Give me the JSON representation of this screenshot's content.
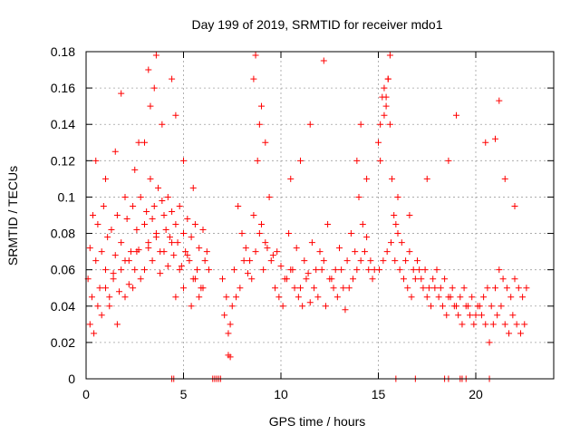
{
  "chart_data": {
    "type": "scatter",
    "title": "Day 199 of 2019, SRMTID for receiver mdo1",
    "xlabel": "GPS time / hours",
    "ylabel": "SRMTID / TECUs",
    "xlim": [
      0,
      24
    ],
    "ylim": [
      0,
      0.18
    ],
    "x_ticks": [
      0,
      5,
      10,
      15,
      20
    ],
    "x_tick_labels": [
      "0",
      "5",
      "10",
      "15",
      "20"
    ],
    "y_ticks": [
      0,
      0.02,
      0.04,
      0.06,
      0.08,
      0.1,
      0.12,
      0.14,
      0.16,
      0.18
    ],
    "y_tick_labels": [
      "0",
      "0.02",
      "0.04",
      "0.06",
      "0.08",
      "0.1",
      "0.12",
      "0.14",
      "0.16",
      "0.18"
    ],
    "grid": true,
    "marker": "+",
    "color": "#ff0000",
    "series": [
      {
        "x": [
          0.1,
          0.2,
          0.3,
          0.35,
          0.5,
          0.6,
          0.7,
          0.8,
          0.9,
          1.0,
          1.1,
          1.2,
          1.3,
          1.4,
          1.5,
          1.6,
          1.7,
          1.8,
          2.0,
          2.1,
          2.2,
          2.3,
          2.4,
          2.5,
          2.6,
          2.7,
          2.8,
          3.0,
          3.1,
          3.2,
          3.3,
          3.4,
          3.5,
          3.6,
          3.7,
          3.8,
          3.9,
          4.0,
          4.1,
          4.2,
          4.3,
          4.4,
          4.5,
          4.6,
          4.7,
          4.8,
          4.9,
          5.0,
          5.1,
          5.2,
          5.3,
          5.4,
          5.5,
          5.6,
          5.7,
          5.8,
          5.9,
          6.0,
          6.1,
          6.2,
          6.3,
          0.2,
          0.4,
          0.6,
          0.8,
          1.0,
          1.2,
          1.4,
          1.6,
          1.8,
          2.0,
          2.2,
          2.4,
          2.6,
          2.8,
          3.0,
          3.2,
          3.4,
          3.6,
          3.8,
          4.0,
          4.2,
          4.4,
          4.6,
          4.8,
          5.0,
          5.2,
          5.4,
          5.6,
          5.8,
          6.0,
          0.5,
          1.0,
          1.5,
          2.0,
          2.5,
          3.0,
          3.3,
          3.5,
          3.9,
          4.4,
          4.6,
          5.0,
          5.5,
          1.8,
          2.7,
          3.2,
          3.6,
          7.0,
          7.2,
          7.4,
          7.6,
          7.8,
          8.0,
          8.2,
          8.4,
          8.6,
          8.8,
          9.0,
          9.2,
          9.4,
          9.6,
          9.8,
          10.0,
          10.2,
          10.4,
          10.6,
          10.8,
          11.0,
          11.2,
          11.4,
          11.6,
          11.8,
          12.0,
          12.2,
          12.4,
          12.6,
          12.8,
          13.0,
          13.2,
          13.4,
          13.6,
          13.8,
          14.0,
          14.2,
          14.4,
          14.6,
          14.8,
          7.1,
          7.3,
          7.5,
          7.7,
          7.9,
          8.1,
          8.3,
          8.5,
          8.7,
          8.9,
          9.1,
          9.3,
          9.5,
          9.7,
          9.9,
          10.1,
          10.3,
          10.5,
          10.7,
          10.9,
          11.1,
          11.3,
          11.5,
          11.7,
          11.9,
          12.1,
          12.3,
          12.5,
          12.7,
          12.9,
          13.1,
          13.3,
          13.5,
          13.7,
          13.9,
          14.1,
          14.3,
          14.5,
          14.7,
          8.6,
          8.7,
          8.9,
          9.0,
          9.2,
          10.5,
          11.0,
          11.5,
          12.2,
          13.9,
          14.1,
          14.4,
          7.3,
          7.4,
          15.0,
          15.1,
          15.2,
          15.3,
          15.4,
          15.5,
          15.6,
          15.7,
          15.8,
          15.9,
          16.0,
          16.2,
          16.4,
          16.6,
          16.8,
          17.0,
          17.2,
          17.4,
          17.6,
          17.8,
          18.0,
          18.2,
          18.4,
          18.6,
          18.8,
          19.0,
          19.2,
          19.4,
          19.6,
          19.8,
          20.0,
          20.2,
          20.4,
          20.6,
          20.8,
          21.0,
          21.2,
          21.4,
          21.6,
          21.8,
          22.0,
          22.2,
          22.4,
          22.6,
          15.05,
          15.25,
          15.45,
          15.65,
          15.85,
          16.1,
          16.3,
          16.5,
          16.7,
          16.9,
          17.1,
          17.3,
          17.5,
          17.7,
          17.9,
          18.1,
          18.3,
          18.5,
          18.7,
          18.9,
          19.1,
          19.3,
          19.5,
          19.7,
          19.9,
          20.1,
          20.3,
          20.5,
          20.7,
          20.9,
          21.1,
          21.3,
          21.5,
          21.7,
          21.9,
          22.1,
          22.3,
          22.5,
          15.1,
          15.3,
          15.4,
          15.5,
          15.6,
          16.0,
          16.6,
          17.5,
          18.6,
          19.0,
          20.5,
          21.0,
          21.2,
          21.5,
          22.0,
          4.4,
          4.5,
          6.5,
          6.6,
          6.7,
          6.8,
          6.9,
          15.9,
          16.9,
          18.4,
          18.6,
          19.2,
          19.3,
          19.5,
          20.7
        ],
        "y": [
          0.055,
          0.072,
          0.045,
          0.09,
          0.065,
          0.085,
          0.05,
          0.07,
          0.095,
          0.06,
          0.078,
          0.04,
          0.082,
          0.058,
          0.068,
          0.09,
          0.048,
          0.075,
          0.065,
          0.088,
          0.052,
          0.07,
          0.095,
          0.06,
          0.082,
          0.071,
          0.1,
          0.085,
          0.092,
          0.075,
          0.11,
          0.088,
          0.095,
          0.08,
          0.105,
          0.07,
          0.098,
          0.09,
          0.082,
          0.1,
          0.078,
          0.092,
          0.068,
          0.085,
          0.075,
          0.095,
          0.062,
          0.08,
          0.07,
          0.088,
          0.065,
          0.078,
          0.055,
          0.085,
          0.06,
          0.072,
          0.05,
          0.082,
          0.065,
          0.07,
          0.06,
          0.03,
          0.025,
          0.04,
          0.035,
          0.05,
          0.045,
          0.055,
          0.03,
          0.06,
          0.045,
          0.065,
          0.05,
          0.07,
          0.055,
          0.06,
          0.072,
          0.065,
          0.078,
          0.058,
          0.07,
          0.062,
          0.075,
          0.045,
          0.06,
          0.05,
          0.068,
          0.04,
          0.055,
          0.045,
          0.05,
          0.12,
          0.11,
          0.125,
          0.1,
          0.115,
          0.13,
          0.15,
          0.16,
          0.14,
          0.165,
          0.145,
          0.12,
          0.105,
          0.157,
          0.13,
          0.17,
          0.178,
          0.055,
          0.045,
          0.03,
          0.06,
          0.095,
          0.08,
          0.072,
          0.065,
          0.09,
          0.12,
          0.085,
          0.075,
          0.1,
          0.068,
          0.07,
          0.062,
          0.055,
          0.08,
          0.06,
          0.072,
          0.05,
          0.065,
          0.058,
          0.075,
          0.06,
          0.07,
          0.065,
          0.085,
          0.055,
          0.06,
          0.072,
          0.05,
          0.065,
          0.08,
          0.07,
          0.1,
          0.085,
          0.078,
          0.065,
          0.06,
          0.035,
          0.025,
          0.04,
          0.045,
          0.05,
          0.065,
          0.058,
          0.055,
          0.07,
          0.08,
          0.06,
          0.072,
          0.065,
          0.05,
          0.045,
          0.04,
          0.055,
          0.06,
          0.05,
          0.045,
          0.04,
          0.055,
          0.042,
          0.05,
          0.045,
          0.06,
          0.04,
          0.055,
          0.05,
          0.045,
          0.06,
          0.038,
          0.05,
          0.055,
          0.06,
          0.065,
          0.07,
          0.06,
          0.055,
          0.165,
          0.178,
          0.14,
          0.15,
          0.13,
          0.11,
          0.12,
          0.14,
          0.175,
          0.12,
          0.14,
          0.11,
          0.013,
          0.012,
          0.13,
          0.14,
          0.155,
          0.16,
          0.15,
          0.165,
          0.178,
          0.11,
          0.09,
          0.085,
          0.08,
          0.075,
          0.065,
          0.07,
          0.06,
          0.065,
          0.055,
          0.06,
          0.05,
          0.055,
          0.06,
          0.05,
          0.055,
          0.045,
          0.05,
          0.04,
          0.045,
          0.05,
          0.04,
          0.045,
          0.035,
          0.04,
          0.045,
          0.05,
          0.04,
          0.05,
          0.06,
          0.055,
          0.05,
          0.045,
          0.055,
          0.05,
          0.045,
          0.05,
          0.06,
          0.065,
          0.07,
          0.075,
          0.065,
          0.06,
          0.055,
          0.05,
          0.045,
          0.055,
          0.06,
          0.05,
          0.045,
          0.04,
          0.05,
          0.045,
          0.04,
          0.035,
          0.045,
          0.04,
          0.035,
          0.03,
          0.04,
          0.035,
          0.03,
          0.04,
          0.035,
          0.03,
          0.02,
          0.03,
          0.035,
          0.04,
          0.03,
          0.025,
          0.035,
          0.03,
          0.025,
          0.03,
          0.12,
          0.145,
          0.155,
          0.165,
          0.14,
          0.1,
          0.09,
          0.11,
          0.12,
          0.145,
          0.13,
          0.132,
          0.153,
          0.11,
          0.095,
          0,
          0,
          0,
          0,
          0,
          0,
          0,
          0,
          0,
          0,
          0,
          0,
          0,
          0,
          0
        ]
      }
    ]
  }
}
